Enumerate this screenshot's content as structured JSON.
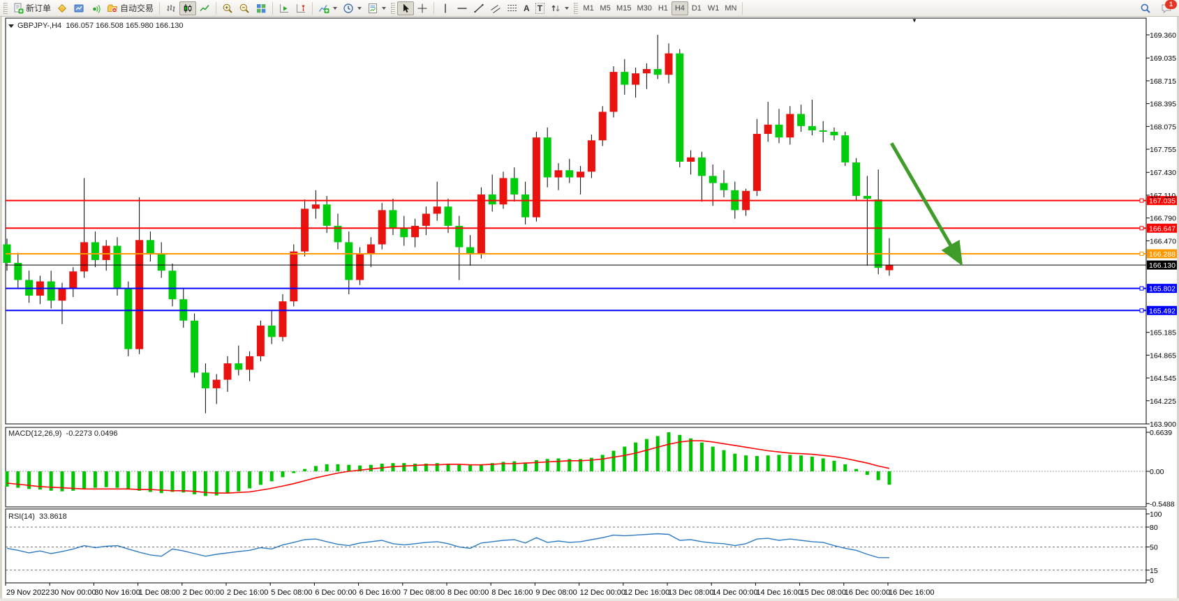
{
  "toolbar": {
    "new_order_label": "新订单",
    "autotrading_label": "自动交易",
    "text_tool_letter": "A",
    "label_tool_letter": "T",
    "timeframes": [
      "M1",
      "M5",
      "M15",
      "M30",
      "H1",
      "H4",
      "D1",
      "W1",
      "MN"
    ],
    "active_timeframe": "H4",
    "badge_count": "1"
  },
  "ui": {
    "shift_marker": "▼"
  },
  "chart_data": {
    "type": "candlestick",
    "symbol": "GBPJPY-,H4",
    "title_ohlc": "166.057 166.508 165.980 166.130",
    "colors": {
      "up": "#e8120e",
      "down": "#00cc0e",
      "wick": "#000000",
      "macd_hist": "#00c400",
      "macd_signal": "#ff0000",
      "rsi_line": "#2e7bc4",
      "arrow": "#3f9c28"
    },
    "price_axis_ticks": [
      "169.360",
      "169.035",
      "168.715",
      "168.395",
      "168.075",
      "167.755",
      "167.430",
      "167.110",
      "166.790",
      "166.470",
      "165.185",
      "164.865",
      "164.545",
      "164.225",
      "163.900"
    ],
    "hlines": [
      {
        "label": "167.035",
        "price": 167.035,
        "color": "#ff0000"
      },
      {
        "label": "166.647",
        "price": 166.647,
        "color": "#ff0000"
      },
      {
        "label": "166.288",
        "price": 166.288,
        "color": "#ff9800"
      },
      {
        "label": "166.130",
        "price": 166.13,
        "color": "#000000"
      },
      {
        "label": "165.802",
        "price": 165.802,
        "color": "#0000ff"
      },
      {
        "label": "165.492",
        "price": 165.492,
        "color": "#0000ff"
      }
    ],
    "time_labels": [
      "29 Nov 2022",
      "30 Nov 00:00",
      "30 Nov 16:00",
      "1 Dec 08:00",
      "2 Dec 00:00",
      "2 Dec 16:00",
      "5 Dec 08:00",
      "6 Dec 00:00",
      "6 Dec 16:00",
      "7 Dec 08:00",
      "8 Dec 00:00",
      "8 Dec 16:00",
      "9 Dec 08:00",
      "12 Dec 00:00",
      "12 Dec 16:00",
      "13 Dec 08:00",
      "14 Dec 00:00",
      "14 Dec 16:00",
      "15 Dec 08:00",
      "16 Dec 00:00",
      "16 Dec 16:00"
    ],
    "candles": [
      [
        166.42,
        166.5,
        166.05,
        166.16
      ],
      [
        166.16,
        166.3,
        165.81,
        165.92
      ],
      [
        165.92,
        166.05,
        165.6,
        165.7
      ],
      [
        165.7,
        165.98,
        165.58,
        165.9
      ],
      [
        165.9,
        166.05,
        165.52,
        165.63
      ],
      [
        165.63,
        165.88,
        165.3,
        165.8
      ],
      [
        165.8,
        166.1,
        165.68,
        166.04
      ],
      [
        166.04,
        167.35,
        165.95,
        166.45
      ],
      [
        166.45,
        166.6,
        166.1,
        166.2
      ],
      [
        166.2,
        166.48,
        166.05,
        166.4
      ],
      [
        166.4,
        166.52,
        165.7,
        165.8
      ],
      [
        165.8,
        165.9,
        164.85,
        164.95
      ],
      [
        164.95,
        167.08,
        164.88,
        166.48
      ],
      [
        166.48,
        166.6,
        166.18,
        166.28
      ],
      [
        166.28,
        166.45,
        165.95,
        166.05
      ],
      [
        166.05,
        166.15,
        165.55,
        165.65
      ],
      [
        165.65,
        165.8,
        165.25,
        165.35
      ],
      [
        165.35,
        165.45,
        164.55,
        164.62
      ],
      [
        164.62,
        164.75,
        164.05,
        164.4
      ],
      [
        164.4,
        164.6,
        164.18,
        164.52
      ],
      [
        164.52,
        164.85,
        164.35,
        164.75
      ],
      [
        164.75,
        165.0,
        164.58,
        164.66
      ],
      [
        164.66,
        164.92,
        164.5,
        164.85
      ],
      [
        164.85,
        165.35,
        164.78,
        165.28
      ],
      [
        165.28,
        165.5,
        165.02,
        165.12
      ],
      [
        165.12,
        165.72,
        165.06,
        165.62
      ],
      [
        165.62,
        166.42,
        165.55,
        166.32
      ],
      [
        166.32,
        167.05,
        166.25,
        166.92
      ],
      [
        166.92,
        167.18,
        166.78,
        166.98
      ],
      [
        166.98,
        167.1,
        166.58,
        166.68
      ],
      [
        166.68,
        166.85,
        166.35,
        166.45
      ],
      [
        166.45,
        166.6,
        165.72,
        165.92
      ],
      [
        165.92,
        166.38,
        165.85,
        166.28
      ],
      [
        166.28,
        166.52,
        166.1,
        166.42
      ],
      [
        166.42,
        167.0,
        166.35,
        166.9
      ],
      [
        166.9,
        167.06,
        166.55,
        166.65
      ],
      [
        166.65,
        166.82,
        166.4,
        166.52
      ],
      [
        166.52,
        166.78,
        166.38,
        166.68
      ],
      [
        166.68,
        166.95,
        166.55,
        166.85
      ],
      [
        166.85,
        167.3,
        166.75,
        166.95
      ],
      [
        166.95,
        167.06,
        166.58,
        166.68
      ],
      [
        166.68,
        166.82,
        165.92,
        166.38
      ],
      [
        166.38,
        166.55,
        166.12,
        166.28
      ],
      [
        166.28,
        167.22,
        166.22,
        167.12
      ],
      [
        167.12,
        167.4,
        166.88,
        166.98
      ],
      [
        166.98,
        167.44,
        166.92,
        167.35
      ],
      [
        167.35,
        167.5,
        167.02,
        167.12
      ],
      [
        167.12,
        167.3,
        166.7,
        166.8
      ],
      [
        166.8,
        168.0,
        166.74,
        167.92
      ],
      [
        167.92,
        168.06,
        167.22,
        167.36
      ],
      [
        167.36,
        167.56,
        167.18,
        167.46
      ],
      [
        167.46,
        167.62,
        167.28,
        167.36
      ],
      [
        167.36,
        167.52,
        167.12,
        167.44
      ],
      [
        167.44,
        167.96,
        167.35,
        167.88
      ],
      [
        167.88,
        168.36,
        167.8,
        168.28
      ],
      [
        168.28,
        168.92,
        168.2,
        168.84
      ],
      [
        168.84,
        169.02,
        168.52,
        168.66
      ],
      [
        168.66,
        168.9,
        168.48,
        168.82
      ],
      [
        168.82,
        168.96,
        168.6,
        168.88
      ],
      [
        168.88,
        169.36,
        168.74,
        168.8
      ],
      [
        168.8,
        169.24,
        168.68,
        169.1
      ],
      [
        169.1,
        169.16,
        167.5,
        167.58
      ],
      [
        167.58,
        167.74,
        167.4,
        167.64
      ],
      [
        167.64,
        167.72,
        167.02,
        167.38
      ],
      [
        167.38,
        167.54,
        166.96,
        167.28
      ],
      [
        167.28,
        167.46,
        167.08,
        167.18
      ],
      [
        167.18,
        167.3,
        166.78,
        166.9
      ],
      [
        166.9,
        167.2,
        166.82,
        167.17
      ],
      [
        167.17,
        168.18,
        167.1,
        167.97
      ],
      [
        167.97,
        168.42,
        167.86,
        168.1
      ],
      [
        168.1,
        168.32,
        167.84,
        167.92
      ],
      [
        167.92,
        168.36,
        167.82,
        168.25
      ],
      [
        168.25,
        168.38,
        168.0,
        168.08
      ],
      [
        168.08,
        168.45,
        167.95,
        168.02
      ],
      [
        168.02,
        168.15,
        167.85,
        168.0
      ],
      [
        168.0,
        168.06,
        167.88,
        167.95
      ],
      [
        167.95,
        168.0,
        167.52,
        167.57
      ],
      [
        167.57,
        167.63,
        167.04,
        167.1
      ],
      [
        167.1,
        167.38,
        166.12,
        167.06
      ],
      [
        167.05,
        167.47,
        166.0,
        166.09
      ],
      [
        166.057,
        166.508,
        165.98,
        166.13
      ]
    ],
    "arrow_annotation": {
      "from_bar": 80.2,
      "from_price": 167.84,
      "to_bar": 87.3,
      "to_price": 166.1
    },
    "macd": {
      "label": "MACD(12,26,9)",
      "values_text": "-0.2273 0.0496",
      "axis_ticks": [
        "0.6639",
        "0.00",
        "-0.5488"
      ],
      "histogram": [
        -0.26,
        -0.28,
        -0.3,
        -0.31,
        -0.33,
        -0.34,
        -0.33,
        -0.3,
        -0.28,
        -0.27,
        -0.28,
        -0.31,
        -0.33,
        -0.35,
        -0.37,
        -0.35,
        -0.36,
        -0.39,
        -0.42,
        -0.41,
        -0.38,
        -0.34,
        -0.29,
        -0.23,
        -0.17,
        -0.1,
        -0.03,
        0.04,
        0.09,
        0.12,
        0.12,
        0.11,
        0.1,
        0.11,
        0.13,
        0.14,
        0.14,
        0.13,
        0.13,
        0.14,
        0.13,
        0.11,
        0.1,
        0.12,
        0.14,
        0.16,
        0.17,
        0.15,
        0.19,
        0.21,
        0.22,
        0.21,
        0.21,
        0.23,
        0.28,
        0.35,
        0.42,
        0.49,
        0.55,
        0.6,
        0.6639,
        0.62,
        0.56,
        0.49,
        0.42,
        0.36,
        0.3,
        0.27,
        0.26,
        0.27,
        0.28,
        0.28,
        0.27,
        0.25,
        0.22,
        0.18,
        0.12,
        0.04,
        -0.06,
        -0.15,
        -0.2273
      ],
      "signal": [
        -0.2,
        -0.22,
        -0.24,
        -0.26,
        -0.27,
        -0.28,
        -0.29,
        -0.3,
        -0.3,
        -0.3,
        -0.3,
        -0.3,
        -0.31,
        -0.31,
        -0.32,
        -0.33,
        -0.33,
        -0.34,
        -0.36,
        -0.37,
        -0.37,
        -0.36,
        -0.35,
        -0.32,
        -0.29,
        -0.25,
        -0.21,
        -0.16,
        -0.11,
        -0.07,
        -0.03,
        0.0,
        0.02,
        0.04,
        0.06,
        0.08,
        0.09,
        0.1,
        0.11,
        0.11,
        0.12,
        0.12,
        0.11,
        0.11,
        0.12,
        0.13,
        0.13,
        0.14,
        0.15,
        0.16,
        0.17,
        0.18,
        0.18,
        0.19,
        0.21,
        0.24,
        0.27,
        0.31,
        0.36,
        0.41,
        0.46,
        0.5,
        0.52,
        0.52,
        0.5,
        0.47,
        0.44,
        0.41,
        0.38,
        0.35,
        0.33,
        0.31,
        0.3,
        0.29,
        0.27,
        0.25,
        0.22,
        0.18,
        0.14,
        0.09,
        0.0496
      ]
    },
    "rsi": {
      "label": "RSI(14)",
      "value_text": "33.8618",
      "axis_ticks": [
        "100",
        "80",
        "50",
        "15",
        "0"
      ],
      "levels": [
        80,
        50,
        15
      ],
      "series": [
        48,
        45,
        41,
        44,
        40,
        43,
        47,
        52,
        49,
        51,
        52,
        47,
        42,
        38,
        36,
        47,
        44,
        40,
        36,
        39,
        41,
        43,
        45,
        49,
        47,
        53,
        57,
        61,
        62,
        58,
        54,
        52,
        56,
        58,
        60,
        55,
        53,
        55,
        57,
        58,
        55,
        50,
        48,
        56,
        58,
        60,
        61,
        56,
        64,
        57,
        59,
        57,
        58,
        61,
        64,
        68,
        67,
        68,
        69,
        70,
        69,
        60,
        61,
        58,
        56,
        55,
        52,
        55,
        62,
        63,
        60,
        62,
        60,
        58,
        57,
        52,
        48,
        45,
        39,
        34,
        33.86
      ]
    }
  }
}
